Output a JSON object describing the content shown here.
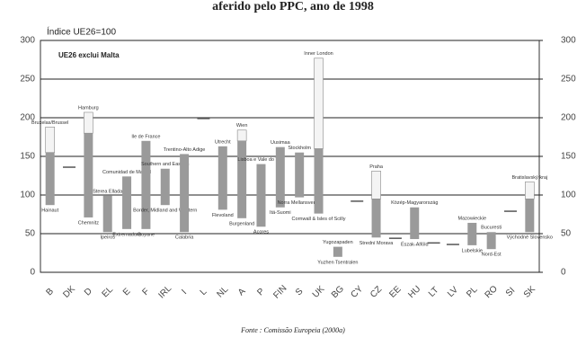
{
  "chart_data": {
    "type": "range",
    "title": "aferido pelo PPC, ano de 1998",
    "y_label": "Índice UE26=100",
    "note": "UE26 exclui Malta",
    "source": "Fonte : Comissão Europeia (2000a)",
    "categories": [
      "B",
      "DK",
      "D",
      "EL",
      "E",
      "F",
      "IRL",
      "I",
      "L",
      "NL",
      "A",
      "P",
      "FIN",
      "S",
      "UK",
      "BG",
      "CY",
      "CZ",
      "EE",
      "HU",
      "LT",
      "LV",
      "PL",
      "RO",
      "SI",
      "SK"
    ],
    "high": [
      188,
      136,
      207,
      99,
      124,
      170,
      134,
      153,
      199,
      163,
      184,
      140,
      162,
      155,
      277,
      33,
      92,
      131,
      44,
      84,
      38,
      36,
      64,
      52,
      79,
      117
    ],
    "split": [
      155,
      null,
      180,
      null,
      null,
      null,
      null,
      null,
      null,
      null,
      170,
      null,
      null,
      null,
      160,
      null,
      null,
      95,
      null,
      null,
      null,
      null,
      null,
      null,
      null,
      95
    ],
    "low": [
      87,
      136,
      71,
      52,
      56,
      56,
      87,
      52,
      199,
      81,
      70,
      59,
      84,
      97,
      76,
      20,
      92,
      45,
      44,
      43,
      38,
      36,
      35,
      30,
      79,
      52
    ],
    "region_high": [
      "Bruxelas/Brussel",
      "",
      "Hamburg",
      "Sterea Ellada",
      "Comunidad de Madrid",
      "Ile de France",
      "Southern and Eastern",
      "Trentino-Alto Adige",
      "",
      "Utrecht",
      "Wien",
      "Lisboa e Vale do Tejo",
      "Uusimaa",
      "Stockholm",
      "Inner London",
      "Yugozapaden",
      "",
      "Praha",
      "",
      "Közép-Magyarország",
      "",
      "",
      "Mazowieckie",
      "Bucuresti",
      "",
      "Bratislavský kraj"
    ],
    "region_low": [
      "Hainaut",
      "",
      "Chemnitz",
      "Ipeiros",
      "Extremadura",
      "Guyane",
      "Border, Midland and Western",
      "Calabria",
      "",
      "Flevoland",
      "Burgenland",
      "Açores",
      "Itä-Suomi",
      "Norra Mellansverige",
      "Cornwall & Isles of Scilly",
      "Yuzhen Tsentralen",
      "",
      "Strední Morava",
      "",
      "Észak-Alföld",
      "",
      "",
      "Lubelskie",
      "Nord-Est",
      "",
      "Východné Slovensko"
    ],
    "light_color": "#f4f4f4",
    "dark_color": "#9a9a9a",
    "ylim": [
      0,
      300
    ],
    "yticks": [
      0,
      50,
      100,
      150,
      200,
      250,
      300
    ],
    "y2lim": [
      0,
      300
    ],
    "y2ticks": [
      0,
      50,
      100,
      150,
      200,
      250,
      300
    ],
    "grid": true
  }
}
